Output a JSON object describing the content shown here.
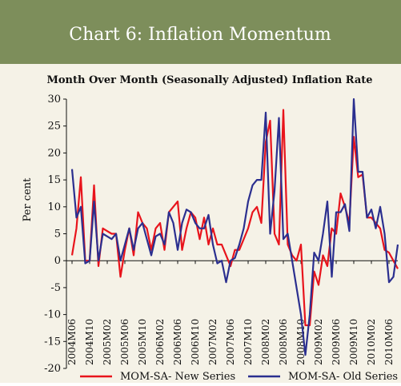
{
  "chart_data": {
    "type": "line",
    "title": "Chart 6: Inflation Momentum",
    "subtitle": "Month Over Month (Seasonally Adjusted) Inflation Rate",
    "y_label": "Per cent",
    "categories": [
      "2004M06",
      null,
      null,
      null,
      "2004M10",
      null,
      null,
      null,
      "2005M02",
      null,
      null,
      null,
      "2005M06",
      null,
      null,
      null,
      "2005M10",
      null,
      null,
      null,
      "2006M02",
      null,
      null,
      null,
      "2006M06",
      null,
      null,
      null,
      "2006M10",
      null,
      null,
      null,
      "2007M02",
      null,
      null,
      null,
      "2007M06",
      null,
      null,
      null,
      "2007M10",
      null,
      null,
      null,
      "2008M02",
      null,
      null,
      null,
      "2008M06",
      null,
      null,
      null,
      "2008M10",
      null,
      null,
      null,
      "2009M02",
      null,
      null,
      null,
      "2009M06",
      null,
      null,
      null,
      "2009M10",
      null,
      null,
      null,
      "2010M02",
      null,
      null,
      null,
      "2010M06",
      null,
      null
    ],
    "series": [
      {
        "name": "MOM-SA- New Series",
        "color": "#e8141c",
        "values": [
          1,
          6,
          15.5,
          0,
          0,
          14,
          -1,
          6,
          5.5,
          5,
          5,
          -3,
          2,
          6,
          1,
          9,
          7,
          6,
          2,
          6,
          7,
          2,
          9,
          10,
          11,
          2,
          6,
          9,
          8,
          4,
          8,
          3,
          6,
          3,
          3,
          1,
          -1,
          2,
          2,
          4,
          6,
          9,
          10,
          7,
          22,
          26,
          5,
          3,
          28,
          3,
          1,
          0,
          3,
          -12,
          -12,
          -2,
          -4.5,
          1,
          -1,
          6,
          5,
          12.5,
          10,
          7,
          23,
          15.5,
          16,
          8,
          8,
          7,
          6,
          2,
          1.5,
          0,
          -1.5
        ]
      },
      {
        "name": "MOM-SA- Old Series",
        "color": "#2b2f8f",
        "values": [
          17,
          8,
          10,
          -0.5,
          0,
          11,
          0,
          5,
          4.5,
          4,
          5,
          0,
          3,
          6,
          2,
          6,
          7,
          4,
          1,
          4.5,
          5,
          3,
          9,
          7,
          2,
          7,
          9.5,
          9,
          7,
          6,
          6,
          8.5,
          3,
          -0.5,
          0,
          -4,
          0,
          0.5,
          3,
          6,
          11,
          14,
          15,
          15,
          27.5,
          5,
          13,
          26.5,
          4,
          5,
          0,
          -5,
          -10,
          -17.5,
          -10,
          1.5,
          0,
          5,
          11,
          -3,
          9,
          9,
          10.5,
          5.5,
          30,
          16.5,
          16.5,
          8,
          9.5,
          6,
          10,
          5,
          -4,
          -3,
          3
        ]
      }
    ],
    "ylim": [
      -20,
      30
    ],
    "yticks": [
      30,
      25,
      20,
      15,
      10,
      5,
      0,
      -5,
      -10,
      -15,
      -20
    ],
    "legend": "bottom"
  }
}
